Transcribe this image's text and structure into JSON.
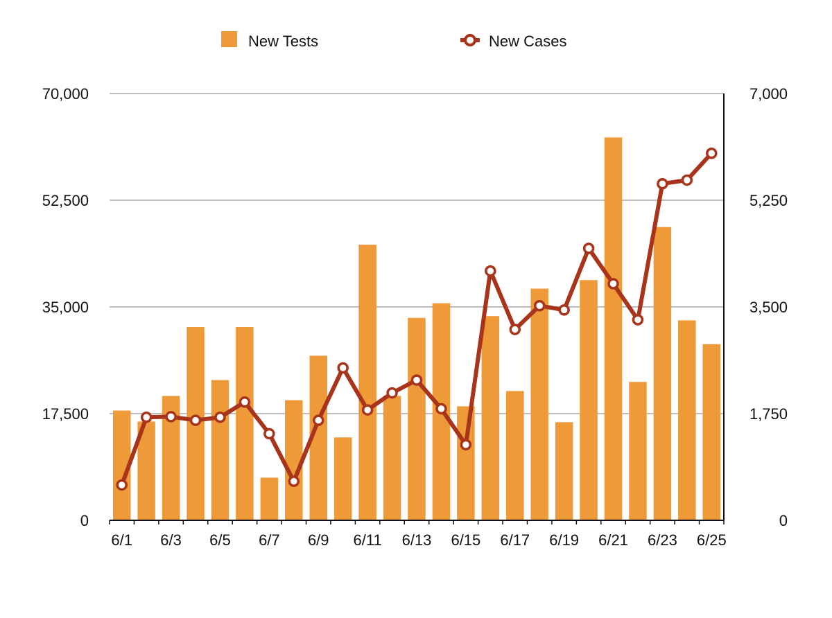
{
  "chart_data": {
    "type": "bar",
    "title": "",
    "xlabel": "",
    "ylabel": "",
    "categories": [
      "6/1",
      "6/2",
      "6/3",
      "6/4",
      "6/5",
      "6/6",
      "6/7",
      "6/8",
      "6/9",
      "6/10",
      "6/11",
      "6/12",
      "6/13",
      "6/14",
      "6/15",
      "6/16",
      "6/17",
      "6/18",
      "6/19",
      "6/20",
      "6/21",
      "6/22",
      "6/23",
      "6/24",
      "6/25"
    ],
    "x_tick_labels": [
      "6/1",
      "6/3",
      "6/5",
      "6/7",
      "6/9",
      "6/11",
      "6/13",
      "6/15",
      "6/17",
      "6/19",
      "6/21",
      "6/23",
      "6/25"
    ],
    "y_left": {
      "ylim": [
        0,
        70000
      ],
      "ticks": [
        "0",
        "17,500",
        "35,000",
        "52,500",
        "70,000"
      ],
      "tick_values": [
        0,
        17500,
        35000,
        52500,
        70000
      ]
    },
    "y_right": {
      "ylim": [
        0,
        7000
      ],
      "ticks": [
        "0",
        "1,750",
        "3,500",
        "5,250",
        "7,000"
      ],
      "tick_values": [
        0,
        1750,
        3500,
        5250,
        7000
      ]
    },
    "grid": true,
    "legend_position": "top-center",
    "series": [
      {
        "name": "New Tests",
        "type": "bar",
        "axis": "left",
        "color": "#EE9A38",
        "values": [
          18000,
          16200,
          20400,
          31700,
          23000,
          31700,
          7000,
          19700,
          27000,
          13600,
          45200,
          20400,
          33200,
          35600,
          18700,
          33500,
          21200,
          38000,
          16100,
          39400,
          62800,
          22700,
          48100,
          32800,
          28900
        ]
      },
      {
        "name": "New Cases",
        "type": "line",
        "axis": "right",
        "color": "#A8341C",
        "values": [
          580,
          1690,
          1700,
          1640,
          1690,
          1940,
          1420,
          640,
          1640,
          2500,
          1810,
          2090,
          2300,
          1830,
          1240,
          4090,
          3130,
          3520,
          3450,
          4460,
          3880,
          3290,
          5520,
          5580,
          6020
        ]
      }
    ]
  }
}
